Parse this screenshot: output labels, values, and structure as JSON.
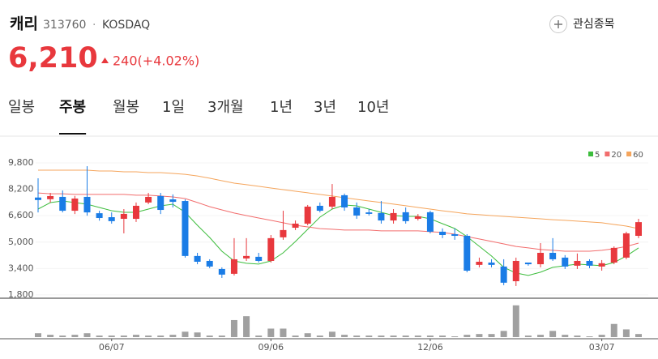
{
  "header": {
    "name": "캐리",
    "code": "313760",
    "separator": "·",
    "market": "KOSDAQ",
    "watchlist": "관심종목",
    "price": "6,210",
    "change": "240(+4.02%)"
  },
  "tabs": {
    "items": [
      "일봉",
      "주봉",
      "월봉",
      "1일",
      "3개월",
      "1년",
      "3년",
      "10년"
    ],
    "selected": 1
  },
  "chart_data": {
    "type": "candlestick",
    "categories": [
      null,
      null,
      null,
      null,
      null,
      null,
      "06/07",
      null,
      null,
      null,
      null,
      null,
      null,
      null,
      null,
      null,
      null,
      null,
      null,
      "09/06",
      null,
      null,
      null,
      null,
      null,
      null,
      null,
      null,
      null,
      null,
      null,
      null,
      "12/06",
      null,
      null,
      null,
      null,
      null,
      null,
      null,
      null,
      null,
      null,
      null,
      null,
      null,
      "03/07",
      null,
      null,
      null
    ],
    "open": [
      7700,
      7600,
      7740,
      6900,
      7740,
      6750,
      6510,
      6410,
      6410,
      7400,
      7790,
      7590,
      7490,
      4160,
      3860,
      3370,
      3080,
      4010,
      4110,
      3860,
      5290,
      5870,
      6120,
      7200,
      7150,
      7840,
      7100,
      6800,
      6760,
      6310,
      6810,
      6410,
      6810,
      5630,
      5480,
      5380,
      3620,
      3760,
      3520,
      2630,
      3760,
      3660,
      4350,
      4060,
      3570,
      3860,
      3520,
      3760,
      4060,
      5380
    ],
    "high": [
      8870,
      7980,
      8130,
      7800,
      9600,
      6900,
      6800,
      7000,
      7400,
      7980,
      7980,
      7890,
      7590,
      4350,
      3960,
      3470,
      5240,
      5240,
      4350,
      5430,
      6900,
      6310,
      7250,
      7400,
      8520,
      7940,
      7400,
      7000,
      7490,
      7000,
      7100,
      6700,
      6900,
      5830,
      5830,
      5480,
      4060,
      3960,
      3960,
      4060,
      3760,
      4940,
      5240,
      4210,
      4310,
      3960,
      3910,
      4740,
      5630,
      6410
    ],
    "low": [
      6800,
      7400,
      6800,
      6700,
      6600,
      6300,
      6120,
      5530,
      6220,
      7300,
      6700,
      7100,
      4060,
      3660,
      3420,
      2830,
      2980,
      3860,
      3760,
      3760,
      5140,
      5730,
      6020,
      6800,
      7000,
      6900,
      6410,
      6610,
      6120,
      6120,
      6120,
      6310,
      5530,
      5240,
      5140,
      3170,
      3470,
      3470,
      2390,
      2340,
      3570,
      3470,
      3860,
      3370,
      3370,
      3420,
      3270,
      3660,
      3960,
      5240
    ],
    "close": [
      7550,
      7790,
      6900,
      7640,
      6800,
      6460,
      6270,
      6710,
      7200,
      7740,
      6950,
      7440,
      4160,
      3810,
      3520,
      3030,
      3960,
      4160,
      3860,
      5240,
      5730,
      6120,
      7150,
      6900,
      7740,
      7100,
      6610,
      6710,
      6310,
      6760,
      6270,
      6560,
      5630,
      5430,
      5380,
      3270,
      3810,
      3620,
      2540,
      3860,
      3660,
      4350,
      3960,
      3520,
      3860,
      3570,
      3720,
      4650,
      5530,
      6210
    ],
    "up_color": "#e8383d",
    "down_color": "#1a7ce6",
    "ylim": [
      1600,
      10340
    ],
    "yticks": [
      {
        "value": 1800,
        "label": "1,800"
      },
      {
        "value": 3400,
        "label": "3,400"
      },
      {
        "value": 5000,
        "label": "5,000"
      },
      {
        "value": 6600,
        "label": "6,600"
      },
      {
        "value": 8200,
        "label": "8,200"
      },
      {
        "value": 9800,
        "label": "9,800"
      }
    ],
    "ma": [
      {
        "name": "5",
        "color": "#3dbd3d",
        "values": [
          7000,
          7395,
          7493,
          7395,
          7297,
          7101,
          6904,
          6806,
          6806,
          7000,
          7199,
          7297,
          6806,
          6021,
          5285,
          4450,
          3861,
          3714,
          3665,
          3861,
          4352,
          5039,
          5775,
          6512,
          7000,
          7248,
          7199,
          7000,
          6806,
          6610,
          6561,
          6561,
          6414,
          6119,
          5824,
          5334,
          4745,
          4156,
          3469,
          3125,
          2978,
          3174,
          3469,
          3567,
          3665,
          3616,
          3567,
          3763,
          4156,
          4647
        ]
      },
      {
        "name": "20",
        "color": "#f26d6d",
        "values": [
          7980,
          7930,
          7930,
          7890,
          7890,
          7890,
          7890,
          7890,
          7840,
          7840,
          7790,
          7740,
          7640,
          7400,
          7150,
          6950,
          6760,
          6610,
          6460,
          6320,
          6170,
          6020,
          5920,
          5820,
          5780,
          5730,
          5730,
          5730,
          5680,
          5680,
          5680,
          5680,
          5630,
          5580,
          5480,
          5330,
          5190,
          5040,
          4890,
          4740,
          4650,
          4550,
          4500,
          4450,
          4450,
          4450,
          4500,
          4600,
          4740,
          4940
        ]
      },
      {
        "name": "60",
        "color": "#f5a55c",
        "values": [
          9360,
          9360,
          9360,
          9360,
          9360,
          9310,
          9310,
          9260,
          9260,
          9210,
          9210,
          9160,
          9110,
          9010,
          8870,
          8720,
          8570,
          8480,
          8380,
          8280,
          8180,
          8080,
          7990,
          7890,
          7790,
          7690,
          7590,
          7490,
          7400,
          7300,
          7200,
          7100,
          7000,
          6900,
          6810,
          6710,
          6660,
          6610,
          6560,
          6510,
          6460,
          6410,
          6360,
          6320,
          6270,
          6220,
          6170,
          6070,
          5970,
          5820
        ]
      }
    ],
    "volume": {
      "color": "#a0a0a0",
      "ylim": [
        0,
        92
      ],
      "values": [
        10,
        6,
        4,
        6,
        10,
        4,
        4,
        4,
        6,
        4,
        4,
        6,
        14,
        12,
        4,
        4,
        44,
        54,
        4,
        22,
        22,
        4,
        10,
        4,
        14,
        6,
        4,
        4,
        4,
        4,
        4,
        4,
        4,
        4,
        2,
        6,
        8,
        8,
        16,
        82,
        4,
        6,
        16,
        6,
        4,
        2,
        6,
        34,
        20,
        8
      ]
    },
    "legend": "top-right",
    "grid": true
  }
}
